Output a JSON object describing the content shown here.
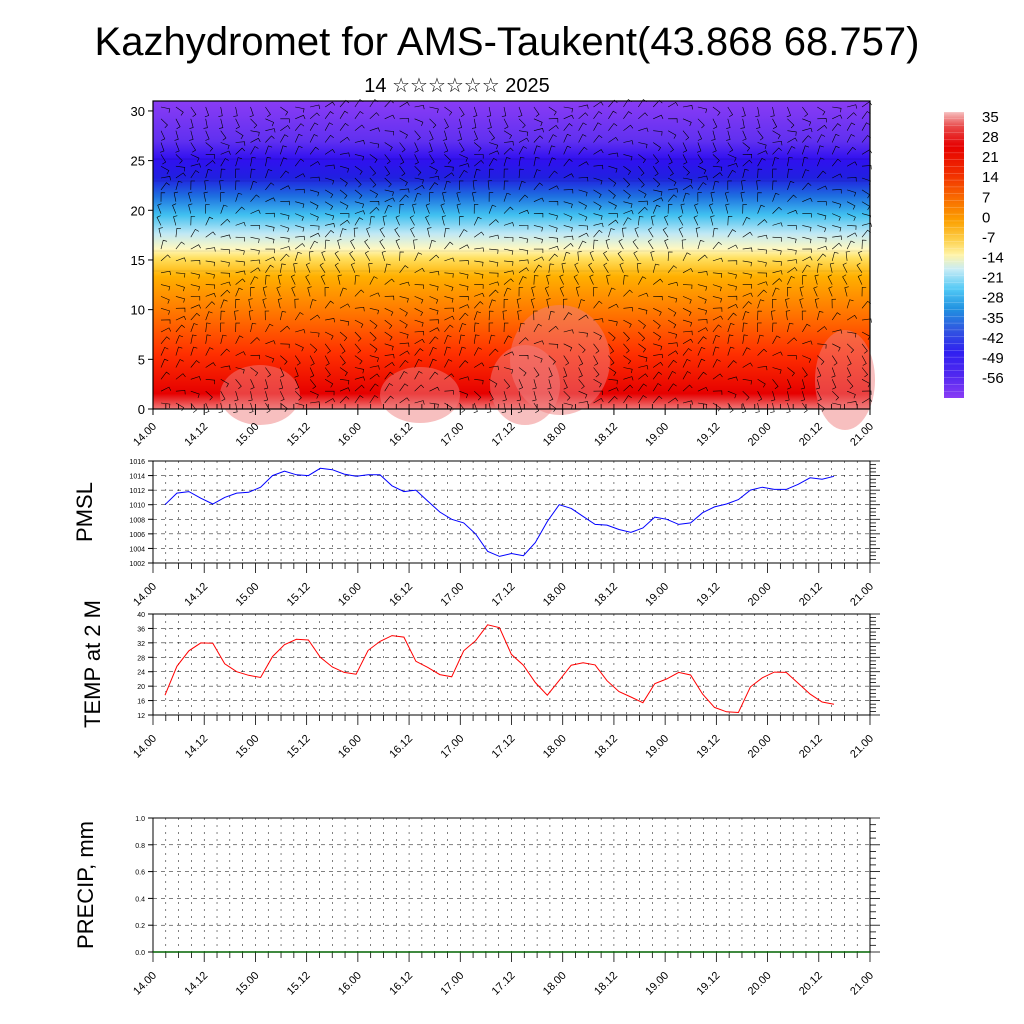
{
  "title": "Kazhydromet for AMS-Taukent(43.868 68.757)",
  "subtitle": "14 ☆☆☆☆☆☆ 2025",
  "colors": {
    "pmsl_line": "#0000ff",
    "temp_line": "#ff0000",
    "precip_line": "#006400",
    "wind_barb": "#000000"
  },
  "chart_data": [
    {
      "type": "heatmap",
      "name": "temperature-cross-section",
      "xlabel": "",
      "ylabel": "",
      "x_ticks": [
        "14.00",
        "14.12",
        "15.00",
        "15.12",
        "16.00",
        "16.12",
        "17.00",
        "17.12",
        "18.00",
        "18.12",
        "19.00",
        "19.12",
        "20.00",
        "20.12",
        "21.00"
      ],
      "y_ticks": [
        0,
        5,
        10,
        15,
        20,
        25,
        30
      ],
      "ylim": [
        0,
        31
      ],
      "colorbar_labels": [
        "35",
        "28",
        "21",
        "14",
        "7",
        "0",
        "-7",
        "-14",
        "-21",
        "-28",
        "-35",
        "-42",
        "-49",
        "-56"
      ],
      "colorbar_colors": [
        "#f4b4b4",
        "#e83a3a",
        "#e60000",
        "#f23000",
        "#f66600",
        "#fa9c10",
        "#fcd04c",
        "#fff4a0",
        "#b4e4f0",
        "#3cbcf0",
        "#2090e0",
        "#3050e0",
        "#3018f0",
        "#7a2ef0"
      ],
      "wind_barbs": true
    },
    {
      "type": "line",
      "name": "pmsl",
      "ylabel": "PMSL",
      "x_ticks": [
        "14.00",
        "14.12",
        "15.00",
        "15.12",
        "16.00",
        "16.12",
        "17.00",
        "17.12",
        "18.00",
        "18.12",
        "19.00",
        "19.12",
        "20.00",
        "20.12",
        "21.00"
      ],
      "y_ticks": [
        1002,
        1004,
        1006,
        1008,
        1010,
        1012,
        1014,
        1016
      ],
      "ylim": [
        1002,
        1016
      ],
      "x_step_hours": 3,
      "series": [
        {
          "values": [
            1010.0,
            1011.6,
            1011.8,
            1010.9,
            1010.1,
            1011.0,
            1011.6,
            1011.7,
            1012.4,
            1014.0,
            1014.6,
            1014.1,
            1014.0,
            1015.0,
            1014.8,
            1014.2,
            1013.9,
            1014.1,
            1014.1,
            1012.6,
            1011.8,
            1012.0,
            1010.5,
            1009.0,
            1008.0,
            1007.5,
            1006.0,
            1003.6,
            1002.9,
            1003.3,
            1003.0,
            1004.8,
            1007.7,
            1010.0,
            1009.5,
            1008.4,
            1007.3,
            1007.2,
            1006.6,
            1006.2,
            1006.8,
            1008.3,
            1008.0,
            1007.3,
            1007.5,
            1008.9,
            1009.7,
            1010.1,
            1010.7,
            1012.0,
            1012.4,
            1012.1,
            1012.1,
            1012.8,
            1013.7,
            1013.5,
            1013.9
          ]
        }
      ]
    },
    {
      "type": "line",
      "name": "temp-2m",
      "ylabel": "TEMP at 2 M",
      "x_ticks": [
        "14.00",
        "14.12",
        "15.00",
        "15.12",
        "16.00",
        "16.12",
        "17.00",
        "17.12",
        "18.00",
        "18.12",
        "19.00",
        "19.12",
        "20.00",
        "20.12",
        "21.00"
      ],
      "y_ticks": [
        12,
        16,
        20,
        24,
        28,
        32,
        36,
        40
      ],
      "ylim": [
        12,
        40
      ],
      "x_step_hours": 3,
      "series": [
        {
          "values": [
            17.5,
            25.5,
            29.8,
            32.0,
            31.9,
            26.2,
            24.0,
            23.0,
            22.4,
            28.2,
            31.5,
            33.0,
            32.8,
            28.0,
            25.3,
            23.8,
            23.3,
            29.9,
            32.4,
            34.0,
            33.6,
            26.9,
            25.2,
            23.2,
            22.6,
            29.8,
            32.6,
            37.0,
            36.2,
            28.8,
            25.8,
            21.0,
            17.5,
            21.6,
            25.8,
            26.5,
            25.9,
            21.5,
            18.5,
            17.0,
            15.4,
            20.7,
            22.0,
            23.8,
            23.1,
            17.8,
            14.1,
            12.9,
            12.7,
            19.8,
            22.3,
            23.9,
            23.8,
            20.8,
            17.8,
            15.6,
            15.0
          ]
        }
      ]
    },
    {
      "type": "line",
      "name": "precip",
      "ylabel": "PRECIP, mm",
      "x_ticks": [
        "14.00",
        "14.12",
        "15.00",
        "15.12",
        "16.00",
        "16.12",
        "17.00",
        "17.12",
        "18.00",
        "18.12",
        "19.00",
        "19.12",
        "20.00",
        "20.12",
        "21.00"
      ],
      "y_ticks": [
        "0.0",
        "0.2",
        "0.4",
        "0.6",
        "0.8",
        "1.0"
      ],
      "ylim": [
        0,
        1
      ],
      "series": [
        {
          "values": [
            0,
            0,
            0,
            0,
            0,
            0,
            0,
            0,
            0,
            0,
            0,
            0,
            0,
            0,
            0
          ]
        }
      ]
    }
  ]
}
